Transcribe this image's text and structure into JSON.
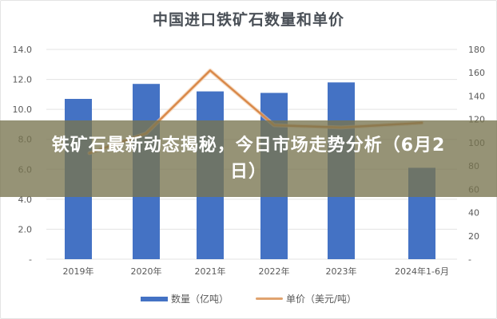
{
  "chart_data": {
    "type": "bar+line",
    "title": "中国进口铁矿石数量和单价",
    "categories": [
      "2019年",
      "2020年",
      "2021年",
      "2022年",
      "2023年",
      "2024年1-6月"
    ],
    "series": [
      {
        "name": "数量（亿吨）",
        "type": "bar",
        "axis": "left",
        "color": "#4472c4",
        "values": [
          10.7,
          11.7,
          11.2,
          11.1,
          11.8,
          6.1
        ]
      },
      {
        "name": "单价（美元/吨）",
        "type": "line",
        "axis": "right",
        "color": "#ed7d31",
        "values": [
          91,
          108,
          162,
          115,
          113,
          117
        ]
      }
    ],
    "left_axis": {
      "ylim": [
        0,
        14
      ],
      "ticks": [
        "-",
        "2.0",
        "4.0",
        "6.0",
        "8.0",
        "10.0",
        "12.0",
        "14.0"
      ]
    },
    "right_axis": {
      "ylim": [
        0,
        180
      ],
      "ticks": [
        "-",
        "20",
        "40",
        "60",
        "80",
        "100",
        "120",
        "140",
        "160",
        "180"
      ]
    },
    "grid": true,
    "legend_position": "bottom"
  },
  "overlay": {
    "headline": "铁矿石最新动态揭秘，今日市场走势分析（6月2日）"
  },
  "legend": {
    "bar_label": "数量（亿吨）",
    "line_label": "单价（美元/吨）"
  }
}
